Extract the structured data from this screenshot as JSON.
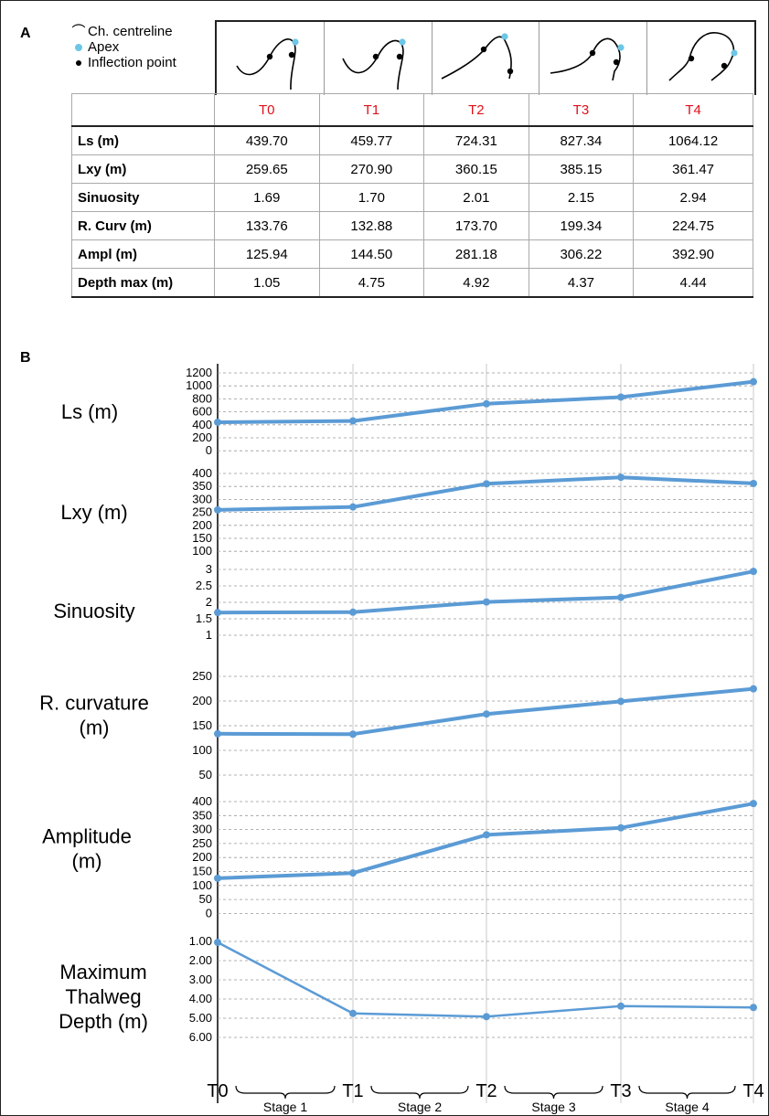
{
  "panel_a_label": "A",
  "panel_b_label": "B",
  "legend": {
    "centreline": "Ch. centreline",
    "apex": "Apex",
    "inflection": "Inflection point",
    "centreline_symbol": "⌒",
    "bullet": "•"
  },
  "colors": {
    "apex": "#6ec6e6",
    "line": "#5b9bd5",
    "header_text": "#e0101a",
    "grid": "#999999"
  },
  "table": {
    "columns": [
      "T0",
      "T1",
      "T2",
      "T3",
      "T4"
    ],
    "rows": [
      {
        "label": "Ls (m)",
        "values": [
          "439.70",
          "459.77",
          "724.31",
          "827.34",
          "1064.12"
        ]
      },
      {
        "label": "Lxy (m)",
        "values": [
          "259.65",
          "270.90",
          "360.15",
          "385.15",
          "361.47"
        ]
      },
      {
        "label": "Sinuosity",
        "values": [
          "1.69",
          "1.70",
          "2.01",
          "2.15",
          "2.94"
        ]
      },
      {
        "label": "R. Curv (m)",
        "values": [
          "133.76",
          "132.88",
          "173.70",
          "199.34",
          "224.75"
        ]
      },
      {
        "label": "Ampl (m)",
        "values": [
          "125.94",
          "144.50",
          "281.18",
          "306.22",
          "392.90"
        ]
      },
      {
        "label": "Depth max (m)",
        "values": [
          "1.05",
          "4.75",
          "4.92",
          "4.37",
          "4.44"
        ]
      }
    ]
  },
  "chart_data": [
    {
      "type": "line",
      "label": "Ls (m)",
      "x": [
        "T0",
        "T1",
        "T2",
        "T3",
        "T4"
      ],
      "values": [
        439.7,
        459.77,
        724.31,
        827.34,
        1064.12
      ],
      "ylim": [
        0,
        1200
      ],
      "ticks": [
        "1200",
        "1000",
        "800",
        "600",
        "400",
        "200",
        "0"
      ],
      "grid": true
    },
    {
      "type": "line",
      "label": "Lxy (m)",
      "x": [
        "T0",
        "T1",
        "T2",
        "T3",
        "T4"
      ],
      "values": [
        259.65,
        270.9,
        360.15,
        385.15,
        361.47
      ],
      "ylim": [
        100,
        400
      ],
      "ticks": [
        "400",
        "350",
        "300",
        "250",
        "200",
        "150",
        "100"
      ],
      "grid": true
    },
    {
      "type": "line",
      "label": "Sinuosity",
      "x": [
        "T0",
        "T1",
        "T2",
        "T3",
        "T4"
      ],
      "values": [
        1.69,
        1.7,
        2.01,
        2.15,
        2.94
      ],
      "ylim": [
        1,
        3
      ],
      "ticks": [
        "3",
        "2.5",
        "2",
        "1.5",
        "1"
      ],
      "grid": true
    },
    {
      "type": "line",
      "label": "R. curvature (m)",
      "x": [
        "T0",
        "T1",
        "T2",
        "T3",
        "T4"
      ],
      "values": [
        133.76,
        132.88,
        173.7,
        199.34,
        224.75
      ],
      "ylim": [
        50,
        250
      ],
      "ticks": [
        "250",
        "200",
        "150",
        "100",
        "50"
      ],
      "grid": true
    },
    {
      "type": "line",
      "label": "Amplitude (m)",
      "x": [
        "T0",
        "T1",
        "T2",
        "T3",
        "T4"
      ],
      "values": [
        125.94,
        144.5,
        281.18,
        306.22,
        392.9
      ],
      "ylim": [
        0,
        400
      ],
      "ticks": [
        "400",
        "350",
        "300",
        "250",
        "200",
        "150",
        "100",
        "50",
        "0"
      ],
      "grid": true
    },
    {
      "type": "line",
      "label": "Maximum Thalweg Depth (m)",
      "x": [
        "T0",
        "T1",
        "T2",
        "T3",
        "T4"
      ],
      "values": [
        1.05,
        4.75,
        4.92,
        4.37,
        4.44
      ],
      "ylim": [
        1,
        6
      ],
      "inverted": true,
      "ticks": [
        "1.00",
        "2.00",
        "3.00",
        "4.00",
        "5.00",
        "6.00"
      ],
      "grid": true
    }
  ],
  "chart_labels": [
    [
      "Ls (m)"
    ],
    [
      "Lxy (m)"
    ],
    [
      "Sinuosity"
    ],
    [
      "R. curvature",
      "(m)"
    ],
    [
      "Amplitude",
      "(m)"
    ],
    [
      "Maximum",
      "Thalweg",
      "Depth (m)"
    ]
  ],
  "time_labels": [
    "T0",
    "T1",
    "T2",
    "T3",
    "T4"
  ],
  "stages": [
    "Stage 1",
    "Stage 2",
    "Stage 3",
    "Stage 4"
  ]
}
